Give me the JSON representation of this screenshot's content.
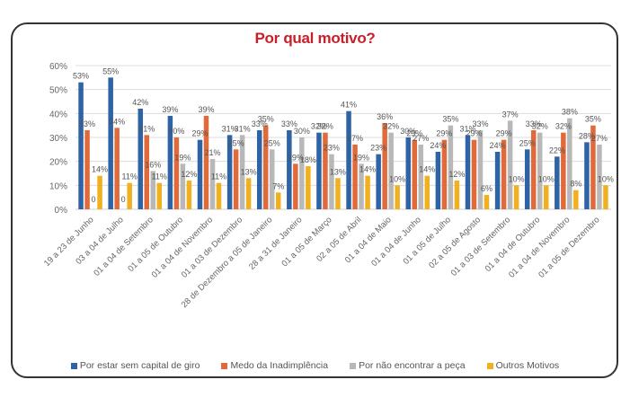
{
  "chart_data": {
    "type": "bar",
    "title": "Por qual motivo?",
    "xlabel": "",
    "ylabel": "",
    "ylim": [
      0,
      60
    ],
    "yticks": [
      "0%",
      "10%",
      "20%",
      "30%",
      "40%",
      "50%",
      "60%"
    ],
    "ytick_values": [
      0,
      10,
      20,
      30,
      40,
      50,
      60
    ],
    "grid": true,
    "legend_position": "bottom",
    "categories": [
      "19 a 23 de Junho",
      "03 a 04 de Julho",
      "01 a 04 de Setembro",
      "01 a 05 de Outubro",
      "01 a 04 de Novembro",
      "01 a 03 de Dezembro",
      "28 de Dezembro a 05 de Janeiro",
      "28 a 31 de Janeiro",
      "01 a 05 de Março",
      "02 a 05 de Abril",
      "01 a 04 de Maio",
      "01 a 04 de Junho",
      "01 a 05 de Julho",
      "02 a 05 de Agosto",
      "01 a 03 de Setembro",
      "01 a 04 de Outubro",
      "01 a 04 de Novembro",
      "01 a 05 de Dezembro"
    ],
    "series": [
      {
        "name": "Por estar sem capital de giro",
        "color": "#2e64a6",
        "values": [
          53,
          55,
          42,
          39,
          29,
          31,
          33,
          33,
          32,
          41,
          23,
          30,
          24,
          31,
          24,
          25,
          22,
          28
        ]
      },
      {
        "name": "Medo da Inadimplência",
        "color": "#e06a3a",
        "values": [
          33,
          34,
          31,
          30,
          39,
          25,
          35,
          19,
          32,
          27,
          36,
          29,
          29,
          29,
          29,
          33,
          32,
          35
        ]
      },
      {
        "name": "Por não encontrar a peça",
        "color": "#b8b8b8",
        "values": [
          0,
          0,
          16,
          19,
          21,
          31,
          25,
          30,
          23,
          19,
          32,
          27,
          35,
          33,
          37,
          32,
          38,
          27
        ]
      },
      {
        "name": "Outros Motivos",
        "color": "#f0b020",
        "values": [
          14,
          11,
          11,
          12,
          11,
          13,
          7,
          18,
          13,
          14,
          10,
          14,
          12,
          6,
          10,
          10,
          8,
          10
        ]
      }
    ],
    "data_labels": [
      [
        "53%",
        "55%",
        "42%",
        "39%",
        "29%",
        "31%",
        "33%",
        "33%",
        "32%",
        "41%",
        "23%",
        "30%",
        "24%",
        "31%",
        "24%",
        "25%",
        "22%",
        "28%"
      ],
      [
        "33%",
        "34%",
        "31%",
        "30%",
        "39%",
        "25%",
        "35%",
        "19%",
        "32%",
        "27%",
        "36%",
        "29%",
        "29%",
        "29%",
        "29%",
        "33%",
        "32%",
        "35%"
      ],
      [
        "0",
        "0",
        "16%",
        "19%",
        "21%",
        "31%",
        "25%",
        "30%",
        "23%",
        "19%",
        "32%",
        "27%",
        "35%",
        "33%",
        "37%",
        "32%",
        "38%",
        "27%"
      ],
      [
        "14%",
        "11%",
        "11%",
        "12%",
        "11%",
        "13%",
        "7%",
        "18%",
        "13%",
        "14%",
        "10%",
        "14%",
        "12%",
        "6%",
        "10%",
        "10%",
        "8%",
        "10%"
      ]
    ]
  }
}
